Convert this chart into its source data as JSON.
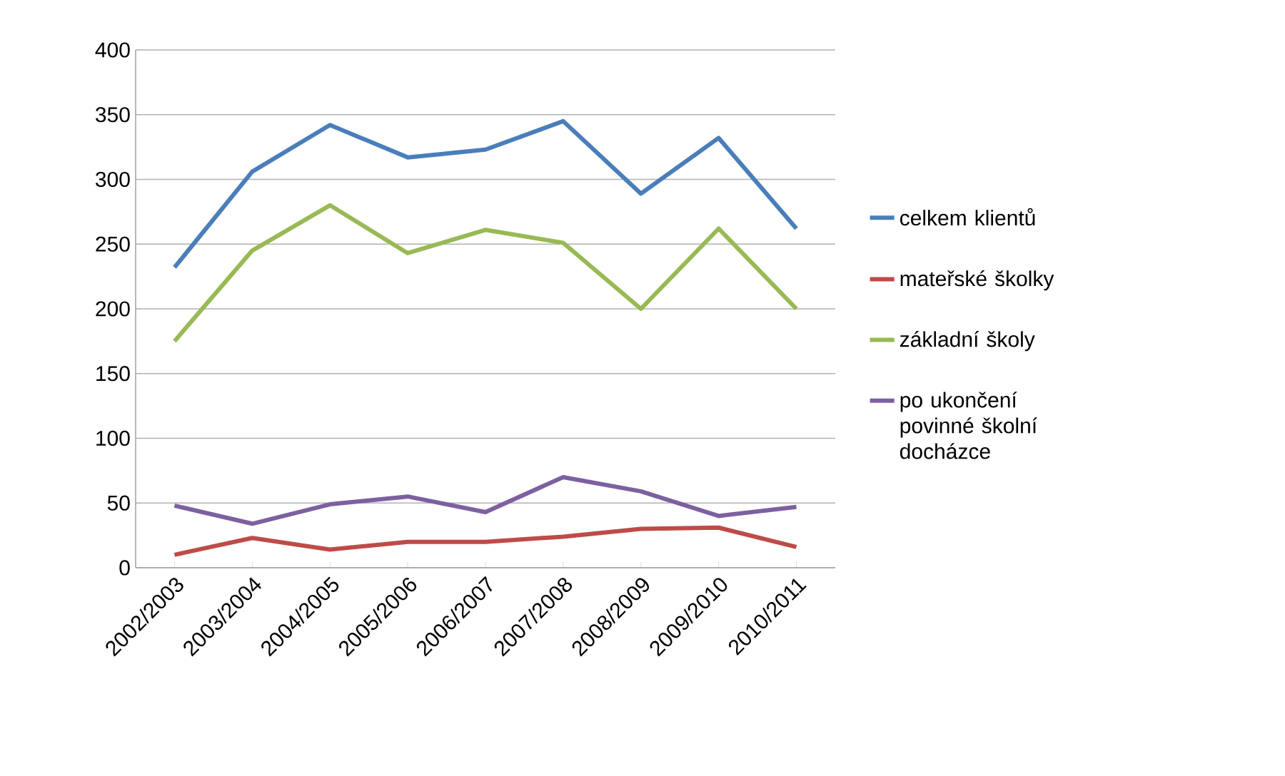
{
  "chart_data": {
    "type": "line",
    "categories": [
      "2002/2003",
      "2003/2004",
      "2004/2005",
      "2005/2006",
      "2006/2007",
      "2007/2008",
      "2008/2009",
      "2009/2010",
      "2010/2011"
    ],
    "series": [
      {
        "name": "celkem klientů",
        "color": "#4a7ebb",
        "values": [
          232,
          306,
          342,
          317,
          323,
          345,
          289,
          332,
          262
        ]
      },
      {
        "name": "mateřské školky",
        "color": "#be4b48",
        "values": [
          10,
          23,
          14,
          20,
          20,
          24,
          30,
          31,
          16
        ]
      },
      {
        "name": "základní školy",
        "color": "#98b954",
        "values": [
          175,
          245,
          280,
          243,
          261,
          251,
          200,
          262,
          200
        ]
      },
      {
        "name": "po ukončení povinné školní docházce",
        "color": "#7d60a0",
        "values": [
          48,
          34,
          49,
          55,
          43,
          70,
          59,
          40,
          47
        ]
      }
    ],
    "ylim": [
      0,
      400
    ],
    "yticks": [
      0,
      50,
      100,
      150,
      200,
      250,
      300,
      350,
      400
    ],
    "grid": "y",
    "legend": "right",
    "marker": "none",
    "line_style": "solid"
  }
}
